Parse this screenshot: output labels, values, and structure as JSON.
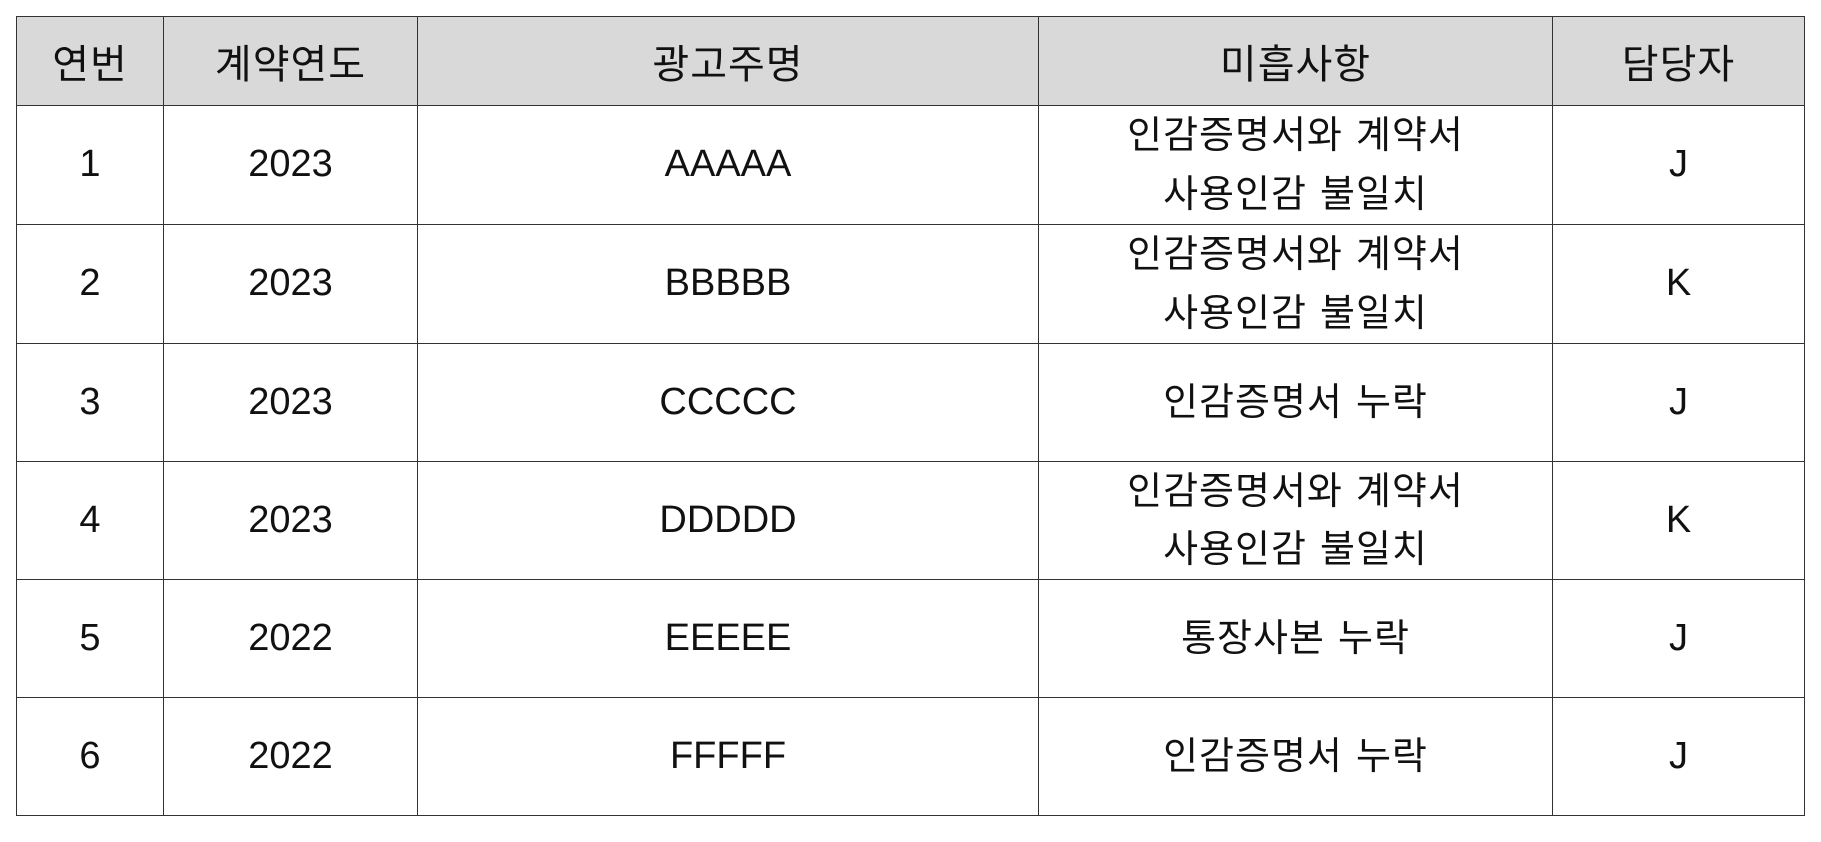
{
  "table": {
    "headers": [
      "연번",
      "계약연도",
      "광고주명",
      "미흡사항",
      "담당자"
    ],
    "rows": [
      {
        "no": "1",
        "year": "2023",
        "advertiser": "AAAAA",
        "issue_lines": [
          "인감증명서와 계약서",
          "사용인감 불일치"
        ],
        "owner": "J"
      },
      {
        "no": "2",
        "year": "2023",
        "advertiser": "BBBBB",
        "issue_lines": [
          "인감증명서와 계약서",
          "사용인감 불일치"
        ],
        "owner": "K"
      },
      {
        "no": "3",
        "year": "2023",
        "advertiser": "CCCCC",
        "issue_lines": [
          "인감증명서 누락"
        ],
        "owner": "J"
      },
      {
        "no": "4",
        "year": "2023",
        "advertiser": "DDDDD",
        "issue_lines": [
          "인감증명서와 계약서",
          "사용인감 불일치"
        ],
        "owner": "K"
      },
      {
        "no": "5",
        "year": "2022",
        "advertiser": "EEEEE",
        "issue_lines": [
          "통장사본 누락"
        ],
        "owner": "J"
      },
      {
        "no": "6",
        "year": "2022",
        "advertiser": "FFFFF",
        "issue_lines": [
          "인감증명서 누락"
        ],
        "owner": "J"
      }
    ]
  }
}
